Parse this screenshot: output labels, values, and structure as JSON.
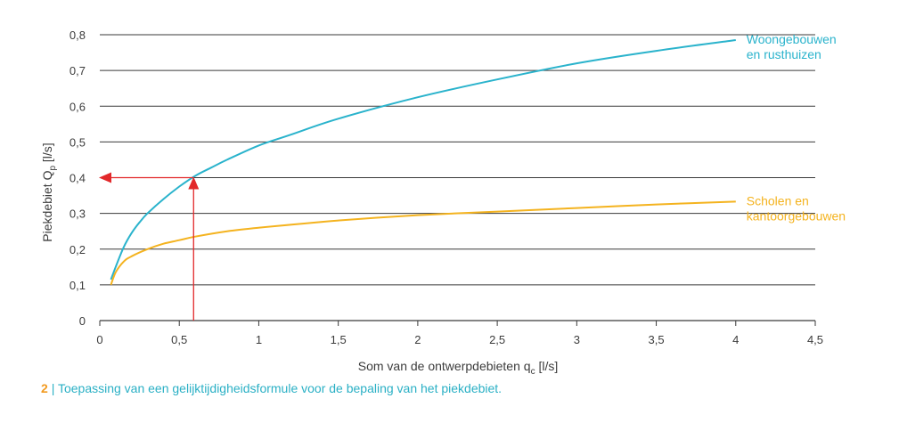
{
  "chart_data": {
    "type": "line",
    "xlabel": {
      "main": "Som van de ontwerpdebieten q",
      "sub": "c",
      "unit": " [l/s]"
    },
    "ylabel": {
      "main": "Piekdebiet Q",
      "sub": "p",
      "unit": " [l/s]"
    },
    "xlim": [
      0,
      4.5
    ],
    "ylim": [
      0,
      0.8
    ],
    "xticks": [
      "0",
      "0,5",
      "1",
      "1,5",
      "2",
      "2,5",
      "3",
      "3,5",
      "4",
      "4,5"
    ],
    "yticks": [
      "0",
      "0,1",
      "0,2",
      "0,3",
      "0,4",
      "0,5",
      "0,6",
      "0,7",
      "0,8"
    ],
    "grid": "horizontal",
    "series": [
      {
        "name_lines": [
          "Woongebouwen",
          "en rusthuizen"
        ],
        "color": "#2ab3cc",
        "x": [
          0.07,
          0.1,
          0.15,
          0.2,
          0.25,
          0.3,
          0.4,
          0.5,
          0.6,
          0.7,
          0.8,
          1.0,
          1.2,
          1.5,
          2.0,
          2.5,
          3.0,
          3.5,
          4.0
        ],
        "y": [
          0.115,
          0.15,
          0.205,
          0.245,
          0.275,
          0.3,
          0.34,
          0.375,
          0.405,
          0.428,
          0.45,
          0.49,
          0.52,
          0.565,
          0.625,
          0.675,
          0.72,
          0.755,
          0.785
        ]
      },
      {
        "name_lines": [
          "Scholen en",
          "kantoorgebouwen"
        ],
        "color": "#f4b31f",
        "x": [
          0.07,
          0.1,
          0.15,
          0.2,
          0.3,
          0.4,
          0.5,
          0.6,
          0.8,
          1.0,
          1.5,
          2.0,
          2.5,
          3.0,
          3.5,
          4.0
        ],
        "y": [
          0.1,
          0.135,
          0.165,
          0.18,
          0.2,
          0.215,
          0.225,
          0.235,
          0.25,
          0.26,
          0.28,
          0.295,
          0.305,
          0.315,
          0.325,
          0.333
        ]
      }
    ],
    "annotation": {
      "type": "arrow",
      "color": "#e2282a",
      "x": 0.59,
      "y": 0.4
    }
  },
  "caption": {
    "number": "2",
    "separator": "|",
    "text": "Toepassing van een gelijktijdigheidsformule voor de bepaling van het piekdebiet."
  }
}
